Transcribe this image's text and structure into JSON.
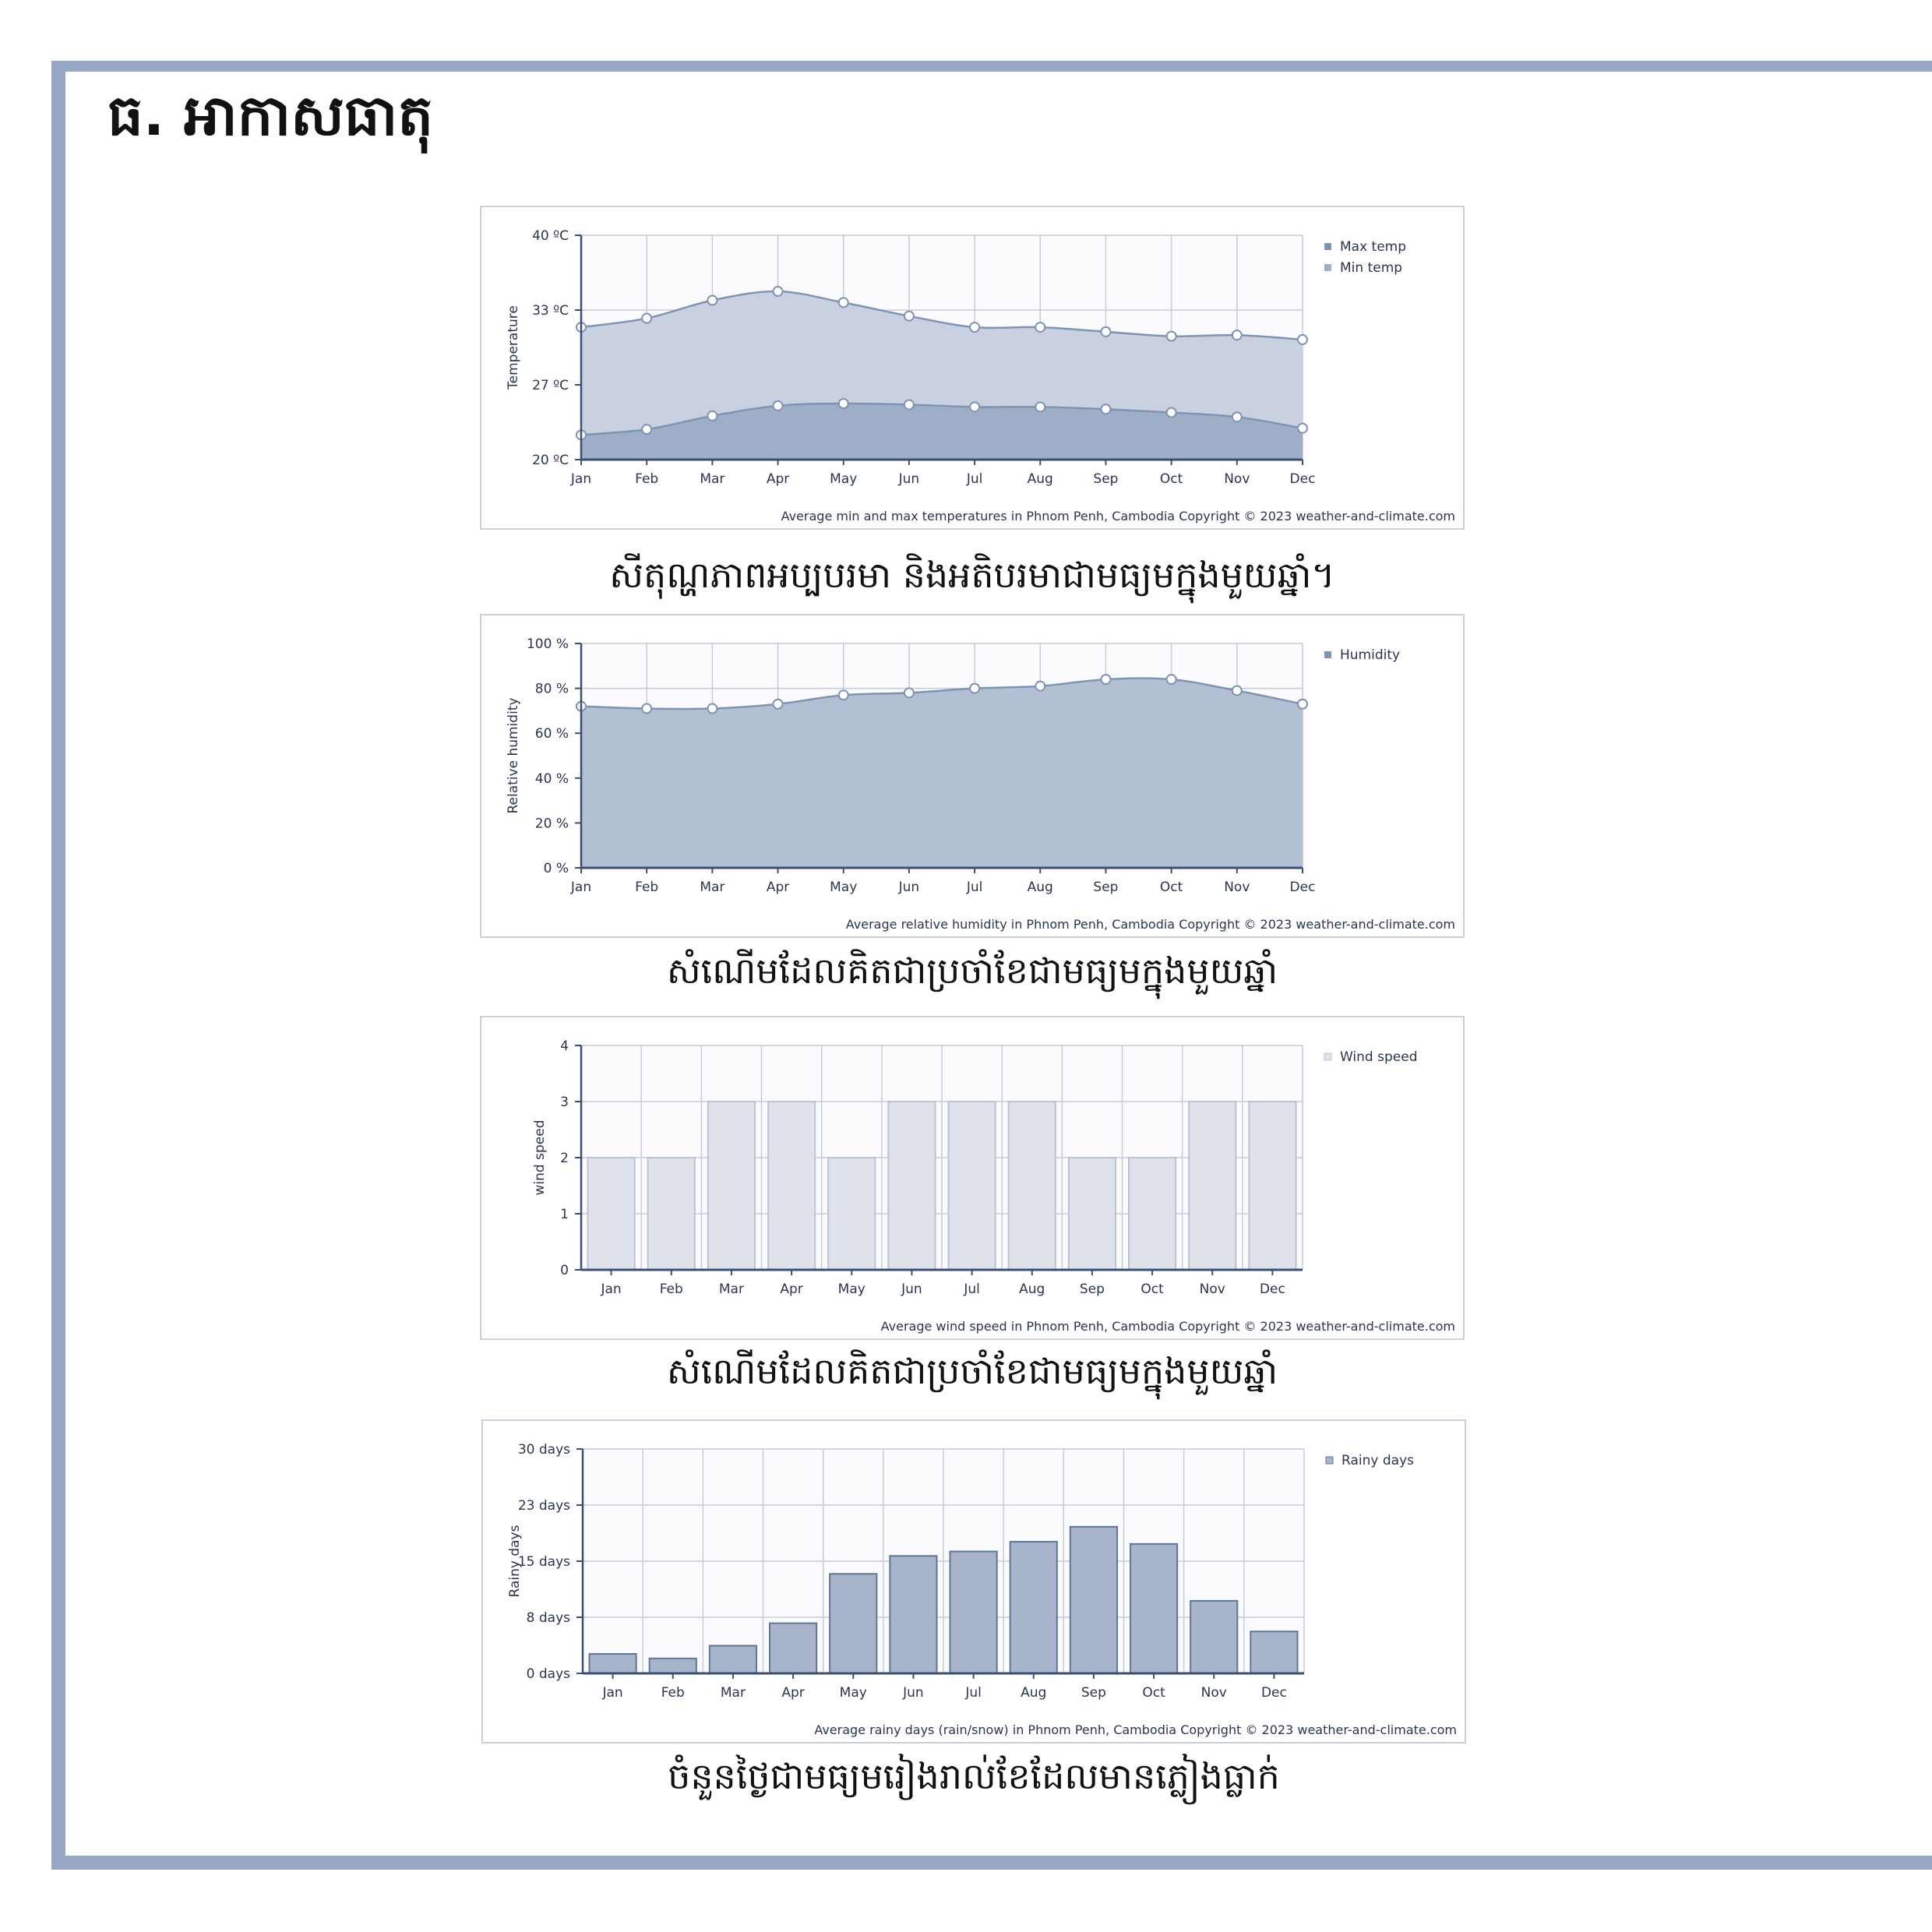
{
  "page": {
    "heading": "ធ. អាកាសធាតុ",
    "captions": [
      "សីតុណ្ហភាពអប្បបរមា និងអតិបរមាជាមធ្យមក្នុងមួយឆ្នាំ។",
      "សំណើមដែលគិតជាប្រចាំខែជាមធ្យមក្នុងមួយឆ្នាំ",
      "សំណើមដែលគិតជាប្រចាំខែជាមធ្យមក្នុងមួយឆ្នាំ",
      "ចំនួនថ្ងៃជាមធ្យមរៀងរាល់ខែដែលមានភ្លៀងធ្លាក់"
    ]
  },
  "chart_data": [
    {
      "type": "area",
      "categories": [
        "Jan",
        "Feb",
        "Mar",
        "Apr",
        "May",
        "Jun",
        "Jul",
        "Aug",
        "Sep",
        "Oct",
        "Nov",
        "Dec"
      ],
      "series": [
        {
          "name": "Max temp",
          "values": [
            31.8,
            32.6,
            34.2,
            35.0,
            34.0,
            32.8,
            31.8,
            31.8,
            31.4,
            31.0,
            31.1,
            30.7
          ]
        },
        {
          "name": "Min temp",
          "values": [
            22.2,
            22.7,
            23.9,
            24.8,
            25.0,
            24.9,
            24.7,
            24.7,
            24.5,
            24.2,
            23.8,
            22.8
          ]
        }
      ],
      "yticks": [
        "20 ºC",
        "27 ºC",
        "33 ºC",
        "40 ºC"
      ],
      "ylim": [
        20,
        40
      ],
      "ylabel": "Temperature",
      "footnote": "Average min and max temperatures in Phnom Penh, Cambodia   Copyright © 2023  weather-and-climate.com",
      "legend_position": "top-right",
      "colors": {
        "max": "#c9d1e0",
        "min": "#9eaec6",
        "line": "#7f93b3"
      }
    },
    {
      "type": "area",
      "categories": [
        "Jan",
        "Feb",
        "Mar",
        "Apr",
        "May",
        "Jun",
        "Jul",
        "Aug",
        "Sep",
        "Oct",
        "Nov",
        "Dec"
      ],
      "series": [
        {
          "name": "Humidity",
          "values": [
            72,
            71,
            71,
            73,
            77,
            78,
            80,
            81,
            84,
            84,
            79,
            73
          ]
        }
      ],
      "yticks": [
        "0 %",
        "20 %",
        "40 %",
        "60 %",
        "80 %",
        "100 %"
      ],
      "ylim": [
        0,
        100
      ],
      "ylabel": "Relative humidity",
      "footnote": "Average relative humidity in Phnom Penh, Cambodia   Copyright © 2023  weather-and-climate.com",
      "legend_position": "top-right",
      "colors": {
        "fill": "#b3bfd3",
        "line": "#7f93b3"
      }
    },
    {
      "type": "bar",
      "categories": [
        "Jan",
        "Feb",
        "Mar",
        "Apr",
        "May",
        "Jun",
        "Jul",
        "Aug",
        "Sep",
        "Oct",
        "Nov",
        "Dec"
      ],
      "series": [
        {
          "name": "Wind speed",
          "values": [
            2,
            2,
            3,
            3,
            2,
            3,
            3,
            3,
            2,
            2,
            3,
            3
          ]
        }
      ],
      "yticks": [
        "0",
        "1",
        "2",
        "3",
        "4"
      ],
      "ylim": [
        0,
        4
      ],
      "ylabel": "wind speed",
      "footnote": "Average wind speed in Phnom Penh, Cambodia   Copyright © 2023  weather-and-climate.com",
      "legend_position": "top-right",
      "colors": {
        "fill": "#dde2eb",
        "line": "#b9c3d4"
      }
    },
    {
      "type": "bar",
      "categories": [
        "Jan",
        "Feb",
        "Mar",
        "Apr",
        "May",
        "Jun",
        "Jul",
        "Aug",
        "Sep",
        "Oct",
        "Nov",
        "Dec"
      ],
      "series": [
        {
          "name": "Rainy days",
          "values": [
            2.6,
            2.0,
            3.7,
            6.7,
            13.3,
            15.7,
            16.3,
            17.6,
            19.6,
            17.3,
            9.7,
            5.6
          ]
        }
      ],
      "yticks": [
        "0 days",
        "8 days",
        "15 days",
        "23 days",
        "30 days"
      ],
      "ylim": [
        0,
        30
      ],
      "ylabel": "Rainy days",
      "footnote": "Average rainy days (rain/snow) in Phnom Penh, Cambodia   Copyright © 2023  weather-and-climate.com",
      "legend_position": "top-right",
      "colors": {
        "fill": "#a7b4ca",
        "line": "#5f7599"
      }
    }
  ]
}
